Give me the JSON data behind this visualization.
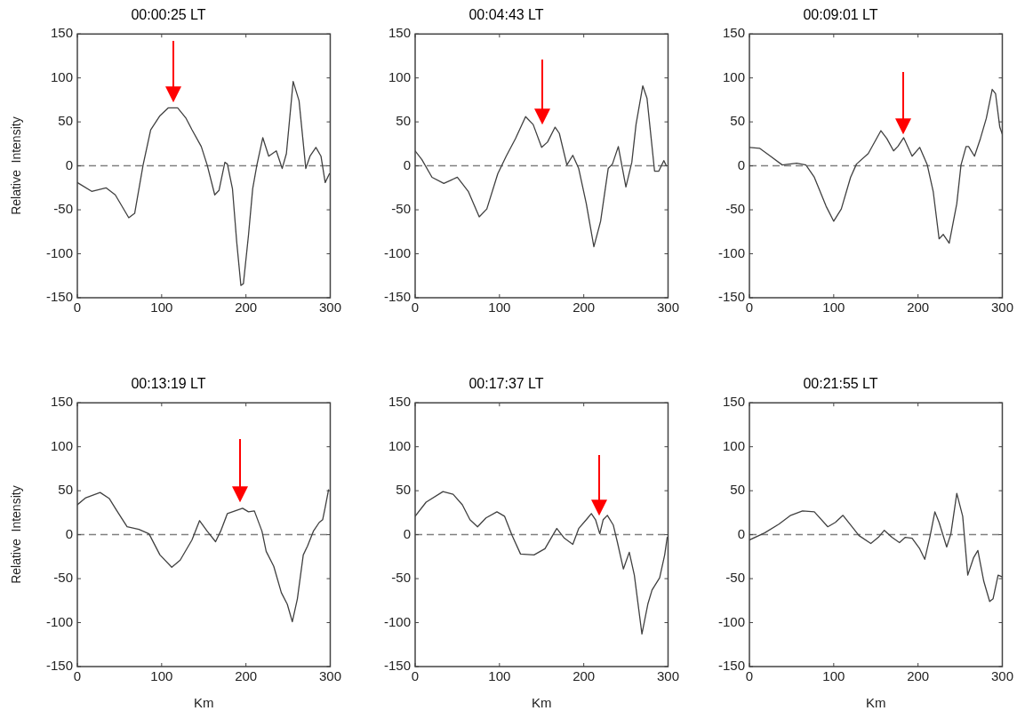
{
  "chart_data": [
    {
      "type": "line",
      "title": "00:00:25 LT",
      "ylabel": "Relative  Intensity",
      "xlim": [
        0,
        300
      ],
      "xticks": [
        0,
        100,
        200,
        300
      ],
      "ylim": [
        -150,
        150
      ],
      "yticks": [
        -150,
        -100,
        -50,
        0,
        50,
        100,
        150
      ],
      "grid": false,
      "marker": "none",
      "line_style": "solid",
      "ref_lines": [
        {
          "axis": "y",
          "value": 0,
          "color": "#808080",
          "line_style": "dashed"
        }
      ],
      "series": [
        {
          "color": "#404040",
          "x": [
            0,
            17,
            34,
            45,
            61,
            68,
            78,
            87,
            98,
            108,
            119,
            129,
            136,
            147,
            154,
            163,
            168,
            175,
            178,
            184,
            189,
            194,
            197,
            203,
            208,
            213,
            220,
            227,
            236,
            243,
            248,
            256,
            263,
            271,
            276,
            283,
            289,
            294,
            299
          ],
          "values": [
            -19,
            -29,
            -25,
            -33,
            -59,
            -54,
            1,
            41,
            57,
            66,
            66,
            54,
            41,
            22,
            1,
            -33,
            -28,
            4,
            2,
            -26,
            -86,
            -136,
            -134,
            -79,
            -26,
            1,
            32,
            11,
            17,
            -3,
            14,
            96,
            74,
            -3,
            11,
            21,
            11,
            -19,
            -9
          ]
        }
      ]
    },
    {
      "type": "line",
      "title": "00:04:43 LT",
      "xlim": [
        0,
        300
      ],
      "xticks": [
        0,
        100,
        200,
        300
      ],
      "ylim": [
        -150,
        150
      ],
      "yticks": [
        -150,
        -100,
        -50,
        0,
        50,
        100,
        150
      ],
      "grid": false,
      "marker": "none",
      "line_style": "solid",
      "ref_lines": [
        {
          "axis": "y",
          "value": 0,
          "color": "#808080",
          "line_style": "dashed"
        }
      ],
      "series": [
        {
          "color": "#404040",
          "x": [
            0,
            8,
            20,
            34,
            50,
            63,
            76,
            85,
            98,
            108,
            119,
            131,
            140,
            150,
            157,
            166,
            171,
            180,
            187,
            194,
            203,
            212,
            220,
            229,
            234,
            241,
            250,
            257,
            262,
            270,
            275,
            284,
            289,
            295,
            298
          ],
          "values": [
            17,
            7,
            -13,
            -20,
            -13,
            -29,
            -58,
            -49,
            -9,
            11,
            31,
            56,
            47,
            21,
            27,
            44,
            37,
            1,
            12,
            -3,
            -43,
            -92,
            -63,
            -3,
            2,
            22,
            -24,
            4,
            47,
            91,
            77,
            -6,
            -6,
            6,
            0
          ]
        }
      ]
    },
    {
      "type": "line",
      "title": "00:09:01 LT",
      "xlim": [
        0,
        300
      ],
      "xticks": [
        0,
        100,
        200,
        300
      ],
      "ylim": [
        -150,
        150
      ],
      "yticks": [
        -150,
        -100,
        -50,
        0,
        50,
        100,
        150
      ],
      "grid": false,
      "marker": "none",
      "line_style": "solid",
      "ref_lines": [
        {
          "axis": "y",
          "value": 0,
          "color": "#808080",
          "line_style": "dashed"
        }
      ],
      "series": [
        {
          "color": "#404040",
          "x": [
            0,
            12,
            25,
            39,
            56,
            67,
            77,
            91,
            100,
            109,
            120,
            127,
            141,
            156,
            163,
            171,
            176,
            183,
            193,
            202,
            211,
            218,
            225,
            230,
            237,
            246,
            251,
            257,
            260,
            267,
            274,
            281,
            288,
            292,
            297,
            300
          ],
          "values": [
            21,
            20,
            11,
            1,
            3,
            1,
            -13,
            -46,
            -63,
            -49,
            -13,
            2,
            14,
            40,
            31,
            17,
            22,
            32,
            11,
            21,
            1,
            -29,
            -83,
            -78,
            -88,
            -43,
            1,
            22,
            22,
            11,
            31,
            54,
            87,
            82,
            44,
            36
          ]
        }
      ]
    },
    {
      "type": "line",
      "title": "00:13:19 LT",
      "xlabel": "Km",
      "ylabel": "Relative  Intensity",
      "xlim": [
        0,
        300
      ],
      "xticks": [
        0,
        100,
        200,
        300
      ],
      "ylim": [
        -150,
        150
      ],
      "yticks": [
        -150,
        -100,
        -50,
        0,
        50,
        100,
        150
      ],
      "grid": false,
      "marker": "none",
      "line_style": "solid",
      "ref_lines": [
        {
          "axis": "y",
          "value": 0,
          "color": "#808080",
          "line_style": "dashed"
        }
      ],
      "series": [
        {
          "color": "#404040",
          "x": [
            0,
            10,
            27,
            38,
            47,
            59,
            73,
            85,
            98,
            112,
            122,
            136,
            145,
            154,
            164,
            170,
            178,
            187,
            196,
            203,
            210,
            219,
            224,
            233,
            242,
            249,
            255,
            261,
            268,
            273,
            280,
            287,
            291,
            294,
            298
          ],
          "values": [
            34,
            42,
            48,
            41,
            27,
            9,
            6,
            1,
            -23,
            -37,
            -29,
            -6,
            16,
            4,
            -8,
            4,
            24,
            27,
            30,
            26,
            27,
            4,
            -19,
            -36,
            -66,
            -79,
            -99,
            -73,
            -23,
            -13,
            4,
            14,
            17,
            31,
            51
          ]
        }
      ]
    },
    {
      "type": "line",
      "title": "00:17:37 LT",
      "xlabel": "Km",
      "xlim": [
        0,
        300
      ],
      "xticks": [
        0,
        100,
        200,
        300
      ],
      "ylim": [
        -150,
        150
      ],
      "yticks": [
        -150,
        -100,
        -50,
        0,
        50,
        100,
        150
      ],
      "grid": false,
      "marker": "none",
      "line_style": "solid",
      "ref_lines": [
        {
          "axis": "y",
          "value": 0,
          "color": "#808080",
          "line_style": "dashed"
        }
      ],
      "series": [
        {
          "color": "#404040",
          "x": [
            0,
            13,
            33,
            45,
            56,
            65,
            74,
            84,
            97,
            106,
            115,
            125,
            141,
            154,
            163,
            168,
            177,
            187,
            194,
            203,
            209,
            214,
            219,
            223,
            228,
            235,
            240,
            247,
            254,
            260,
            269,
            276,
            281,
            290,
            296,
            299
          ],
          "values": [
            21,
            37,
            49,
            46,
            34,
            17,
            9,
            19,
            26,
            21,
            -1,
            -22,
            -23,
            -16,
            -1,
            7,
            -4,
            -11,
            7,
            17,
            24,
            17,
            1,
            17,
            22,
            11,
            -9,
            -39,
            -20,
            -46,
            -113,
            -79,
            -63,
            -49,
            -23,
            -3
          ]
        }
      ]
    },
    {
      "type": "line",
      "title": "00:21:55 LT",
      "xlabel": "Km",
      "xlim": [
        0,
        300
      ],
      "xticks": [
        0,
        100,
        200,
        300
      ],
      "ylim": [
        -150,
        150
      ],
      "yticks": [
        -150,
        -100,
        -50,
        0,
        50,
        100,
        150
      ],
      "grid": false,
      "marker": "none",
      "line_style": "solid",
      "ref_lines": [
        {
          "axis": "y",
          "value": 0,
          "color": "#808080",
          "line_style": "dashed"
        }
      ],
      "series": [
        {
          "color": "#404040",
          "x": [
            0,
            18,
            35,
            49,
            63,
            77,
            93,
            102,
            111,
            120,
            130,
            144,
            153,
            160,
            169,
            178,
            185,
            193,
            202,
            208,
            214,
            220,
            225,
            234,
            239,
            246,
            253,
            259,
            266,
            271,
            278,
            285,
            289,
            295,
            300
          ],
          "values": [
            -6,
            2,
            12,
            22,
            27,
            26,
            9,
            14,
            22,
            11,
            -1,
            -10,
            -3,
            5,
            -3,
            -9,
            -3,
            -4,
            -16,
            -28,
            -3,
            26,
            14,
            -14,
            1,
            47,
            21,
            -46,
            -26,
            -18,
            -53,
            -76,
            -73,
            -46,
            -48
          ]
        }
      ]
    }
  ]
}
